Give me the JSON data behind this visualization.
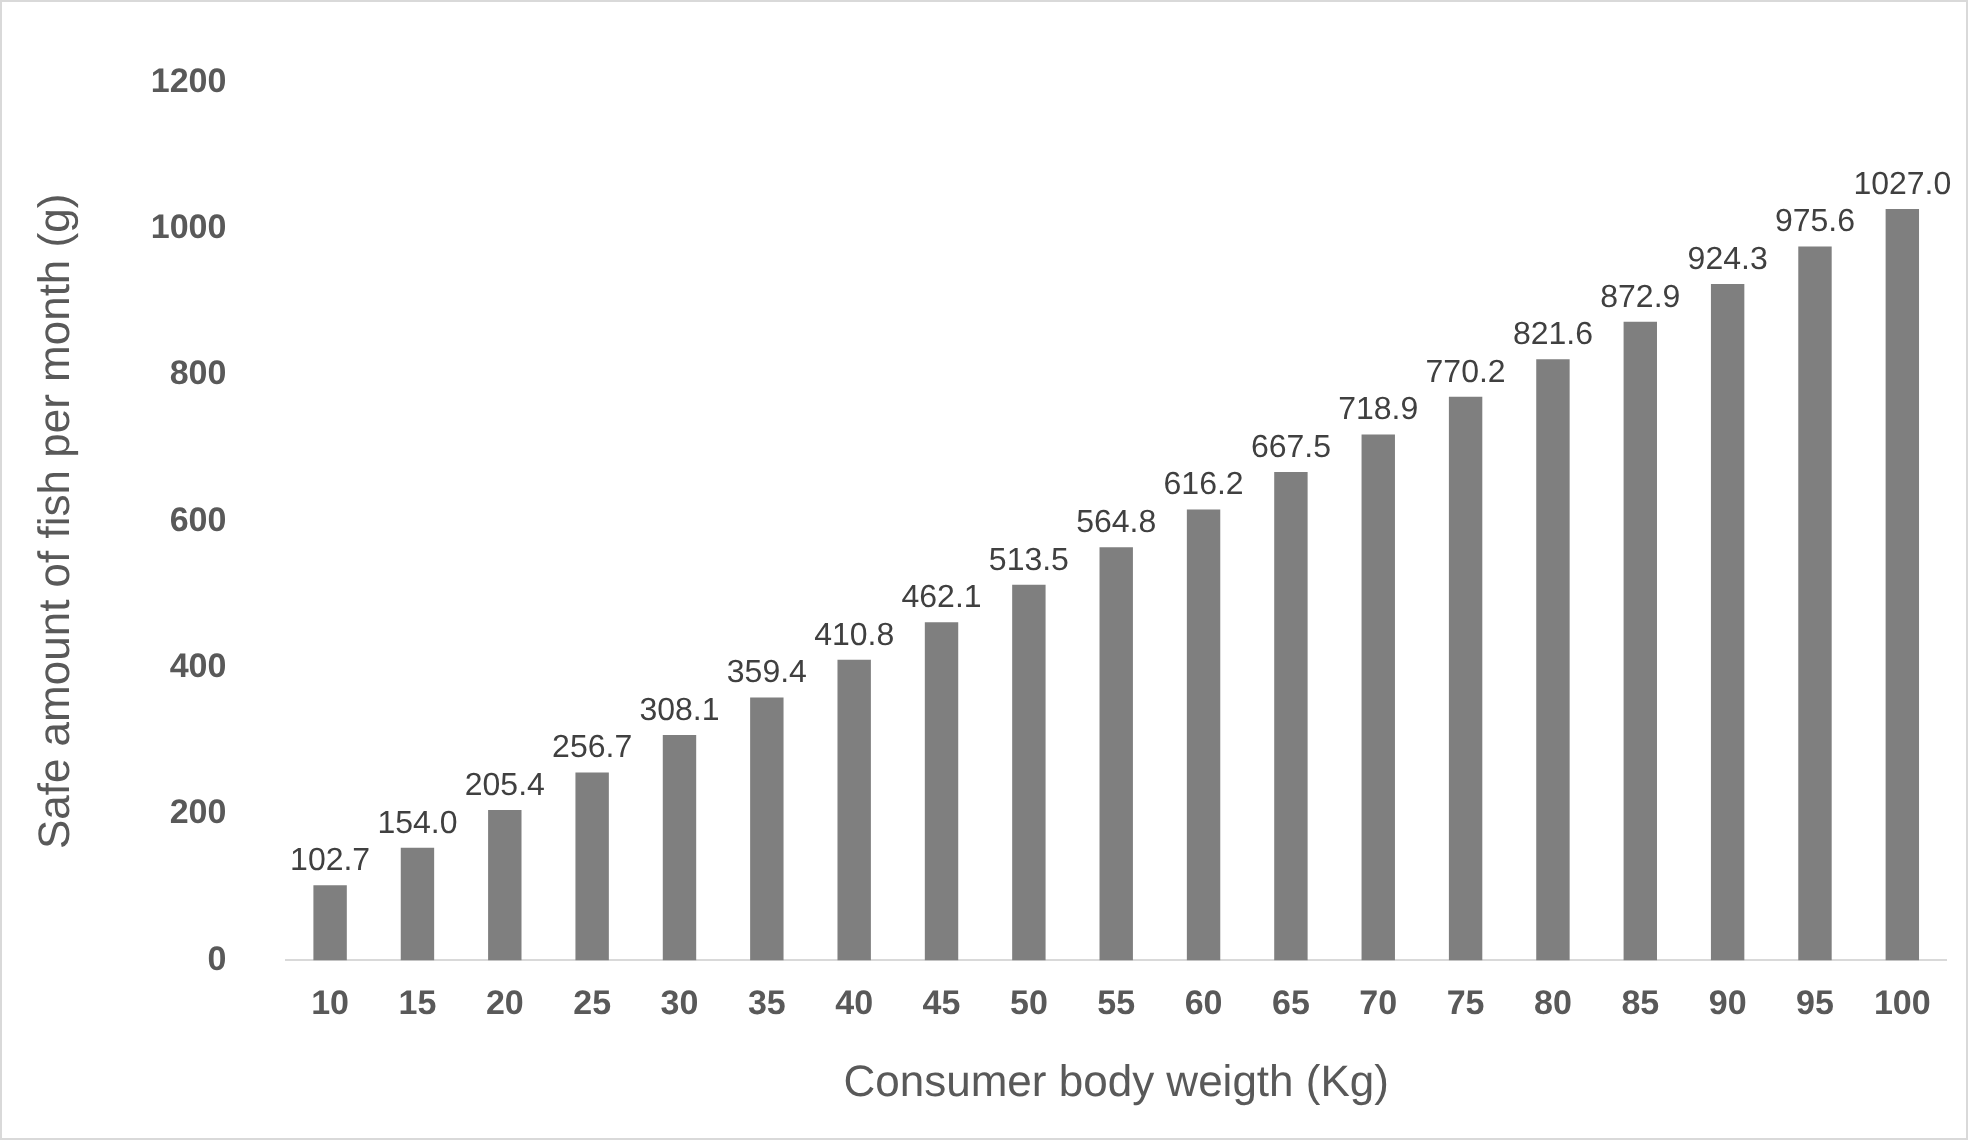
{
  "chart_data": {
    "type": "bar",
    "xlabel": "Consumer body weigth (Kg)",
    "ylabel": "Safe amount of fish per month (g)",
    "categories": [
      "10",
      "15",
      "20",
      "25",
      "30",
      "35",
      "40",
      "45",
      "50",
      "55",
      "60",
      "65",
      "70",
      "75",
      "80",
      "85",
      "90",
      "95",
      "100"
    ],
    "values": [
      102.7,
      154.0,
      205.4,
      256.7,
      308.1,
      359.4,
      410.8,
      462.1,
      513.5,
      564.8,
      616.2,
      667.5,
      718.9,
      770.2,
      821.6,
      872.9,
      924.3,
      975.6,
      1027.0
    ],
    "value_labels": [
      "102.7",
      "154.0",
      "205.4",
      "256.7",
      "308.1",
      "359.4",
      "410.8",
      "462.1",
      "513.5",
      "564.8",
      "616.2",
      "667.5",
      "718.9",
      "770.2",
      "821.6",
      "872.9",
      "924.3",
      "975.6",
      "1027.0"
    ],
    "color": "#7f7f7f",
    "ylim": [
      0,
      1200
    ],
    "yticks": [
      0,
      200,
      400,
      600,
      800,
      1000,
      1200
    ],
    "grid": false,
    "legend": false
  }
}
